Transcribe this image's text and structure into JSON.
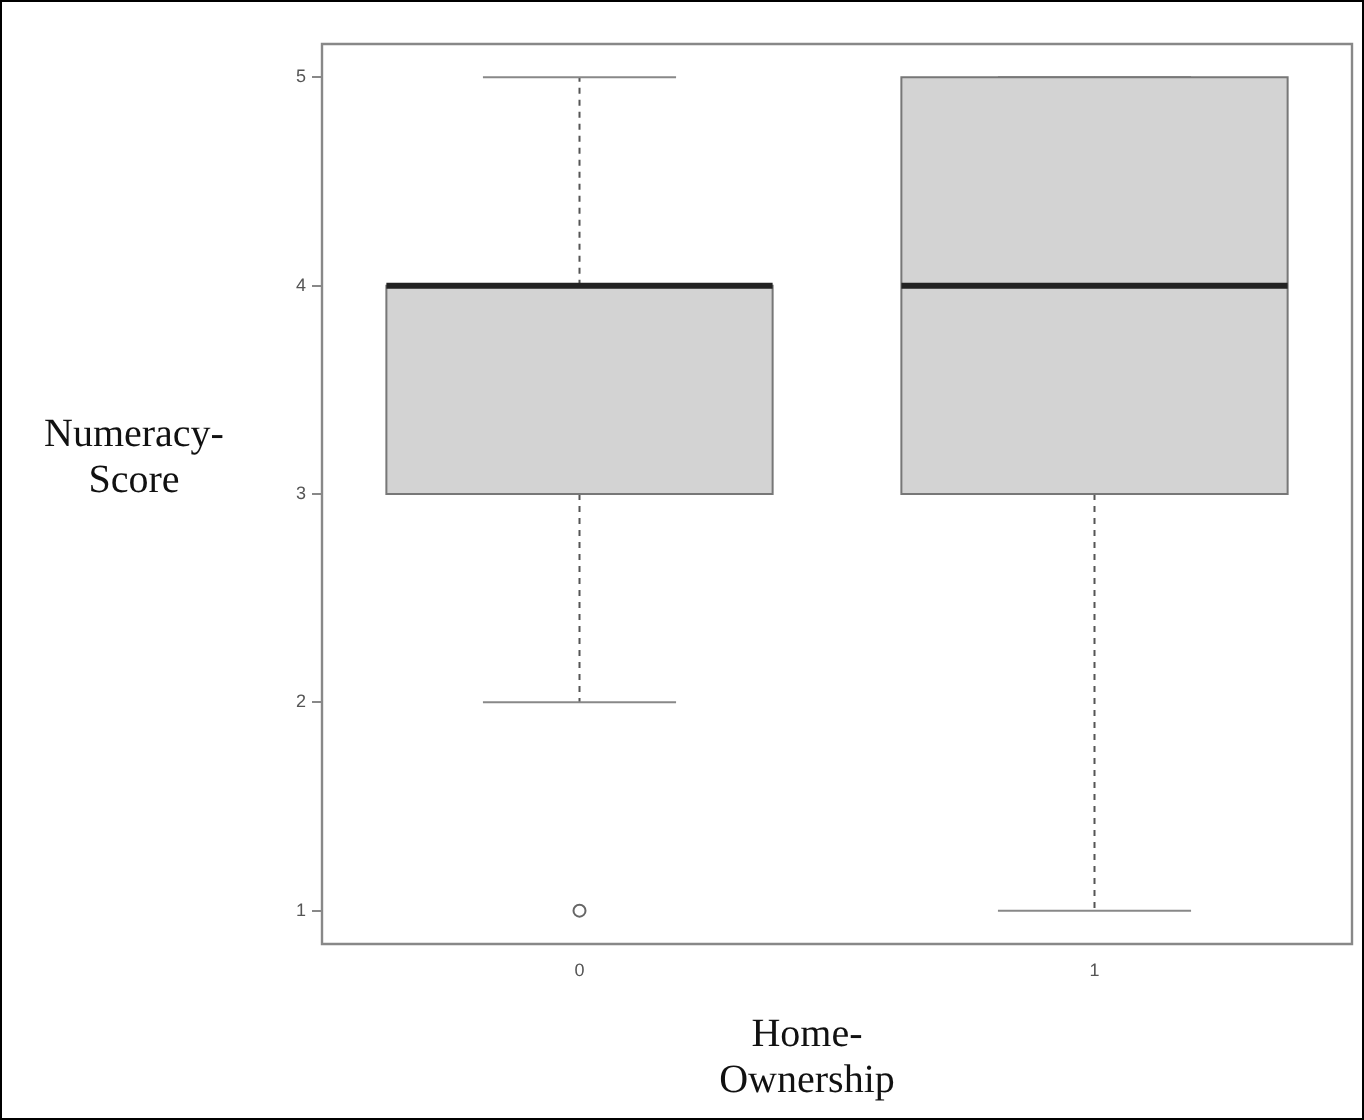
{
  "chart_data": {
    "type": "box",
    "xlabel": "Home-Ownership",
    "ylabel": "Numeracy-Score",
    "categories": [
      "0",
      "1"
    ],
    "color": "#d3d3d3",
    "ylim": [
      0.84,
      5.16
    ],
    "yticks": [
      1,
      2,
      3,
      4,
      5
    ],
    "boxes": [
      {
        "low": 2,
        "q1": 3,
        "median": 4,
        "q3": 4,
        "high": 5,
        "outliers": [
          1
        ]
      },
      {
        "low": 1,
        "q1": 3,
        "median": 4,
        "q3": 5,
        "high": 5
      }
    ]
  }
}
